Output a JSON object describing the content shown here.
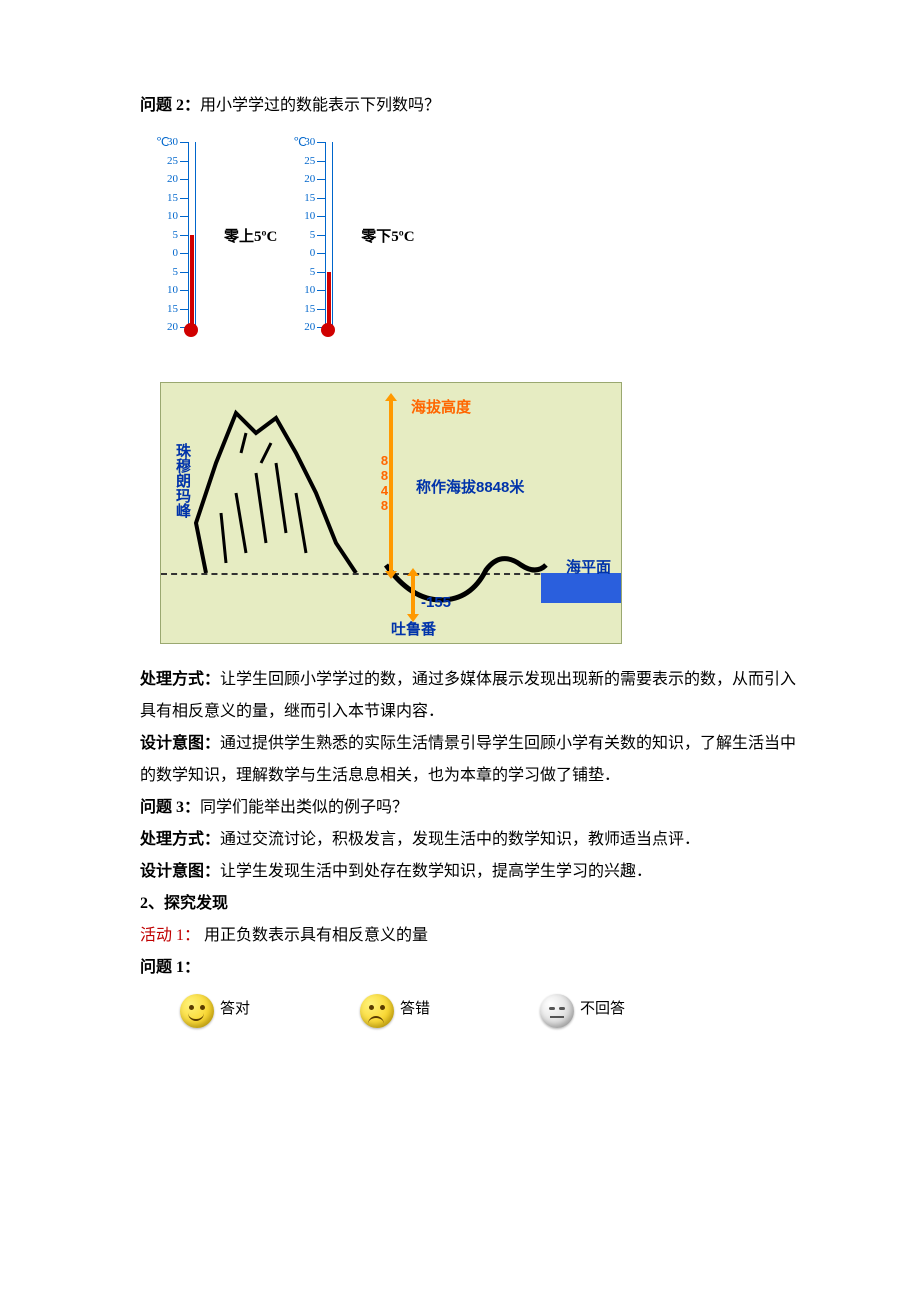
{
  "q2": {
    "label": "问题 2：",
    "text": "用小学学过的数能表示下列数吗？"
  },
  "thermometers": {
    "unit": "℃",
    "tick_values": [
      30,
      25,
      20,
      15,
      10,
      5,
      0,
      5,
      10,
      15,
      20
    ],
    "tick_count": 11,
    "tick_color": "#0066cc",
    "fill_color": "#d00000",
    "left": {
      "label": "零上5ºC",
      "fill_top_value": 5,
      "fill_above_zero": true
    },
    "right": {
      "label": "零下5ºC",
      "fill_top_value": -5,
      "fill_above_zero": false
    }
  },
  "altitude_figure": {
    "bg_color": "#e6ecc2",
    "peak_name": "珠穆朗玛峰",
    "basin_name": "吐鲁番",
    "title_label": "海拔高度",
    "peak_value_label": "8848",
    "peak_text": "称作海拔8848米",
    "basin_value": "-155",
    "sea_level_label": "海平面",
    "arrow_color": "#ff9900",
    "text_color": "#0033aa",
    "sea_color": "#2a5fdd"
  },
  "para_chuli1": {
    "label": "处理方式：",
    "text": "让学生回顾小学学过的数，通过多媒体展示发现出现新的需要表示的数，从而引入具有相反意义的量，继而引入本节课内容．"
  },
  "para_sheji1": {
    "label": "设计意图：",
    "text": "通过提供学生熟悉的实际生活情景引导学生回顾小学有关数的知识，了解生活当中的数学知识，理解数学与生活息息相关，也为本章的学习做了铺垫．"
  },
  "q3": {
    "label": "问题 3：",
    "text": "同学们能举出类似的例子吗？"
  },
  "para_chuli2": {
    "label": "处理方式：",
    "text": "通过交流讨论，积极发言，发现生活中的数学知识，教师适当点评．"
  },
  "para_sheji2": {
    "label": "设计意图：",
    "text": "让学生发现生活中到处存在数学知识，提高学生学习的兴趣．"
  },
  "section2": {
    "title": "2、探究发现"
  },
  "activity1": {
    "label": "活动 1：",
    "text": " 用正负数表示具有相反意义的量"
  },
  "q1b": {
    "label": "问题 1："
  },
  "emojis": {
    "happy_label": "答对",
    "sad_label": "答错",
    "neutral_label": "不回答",
    "happy_color": "#f5c400",
    "sad_color": "#f5c400",
    "neutral_color": "#c8c8c8"
  }
}
